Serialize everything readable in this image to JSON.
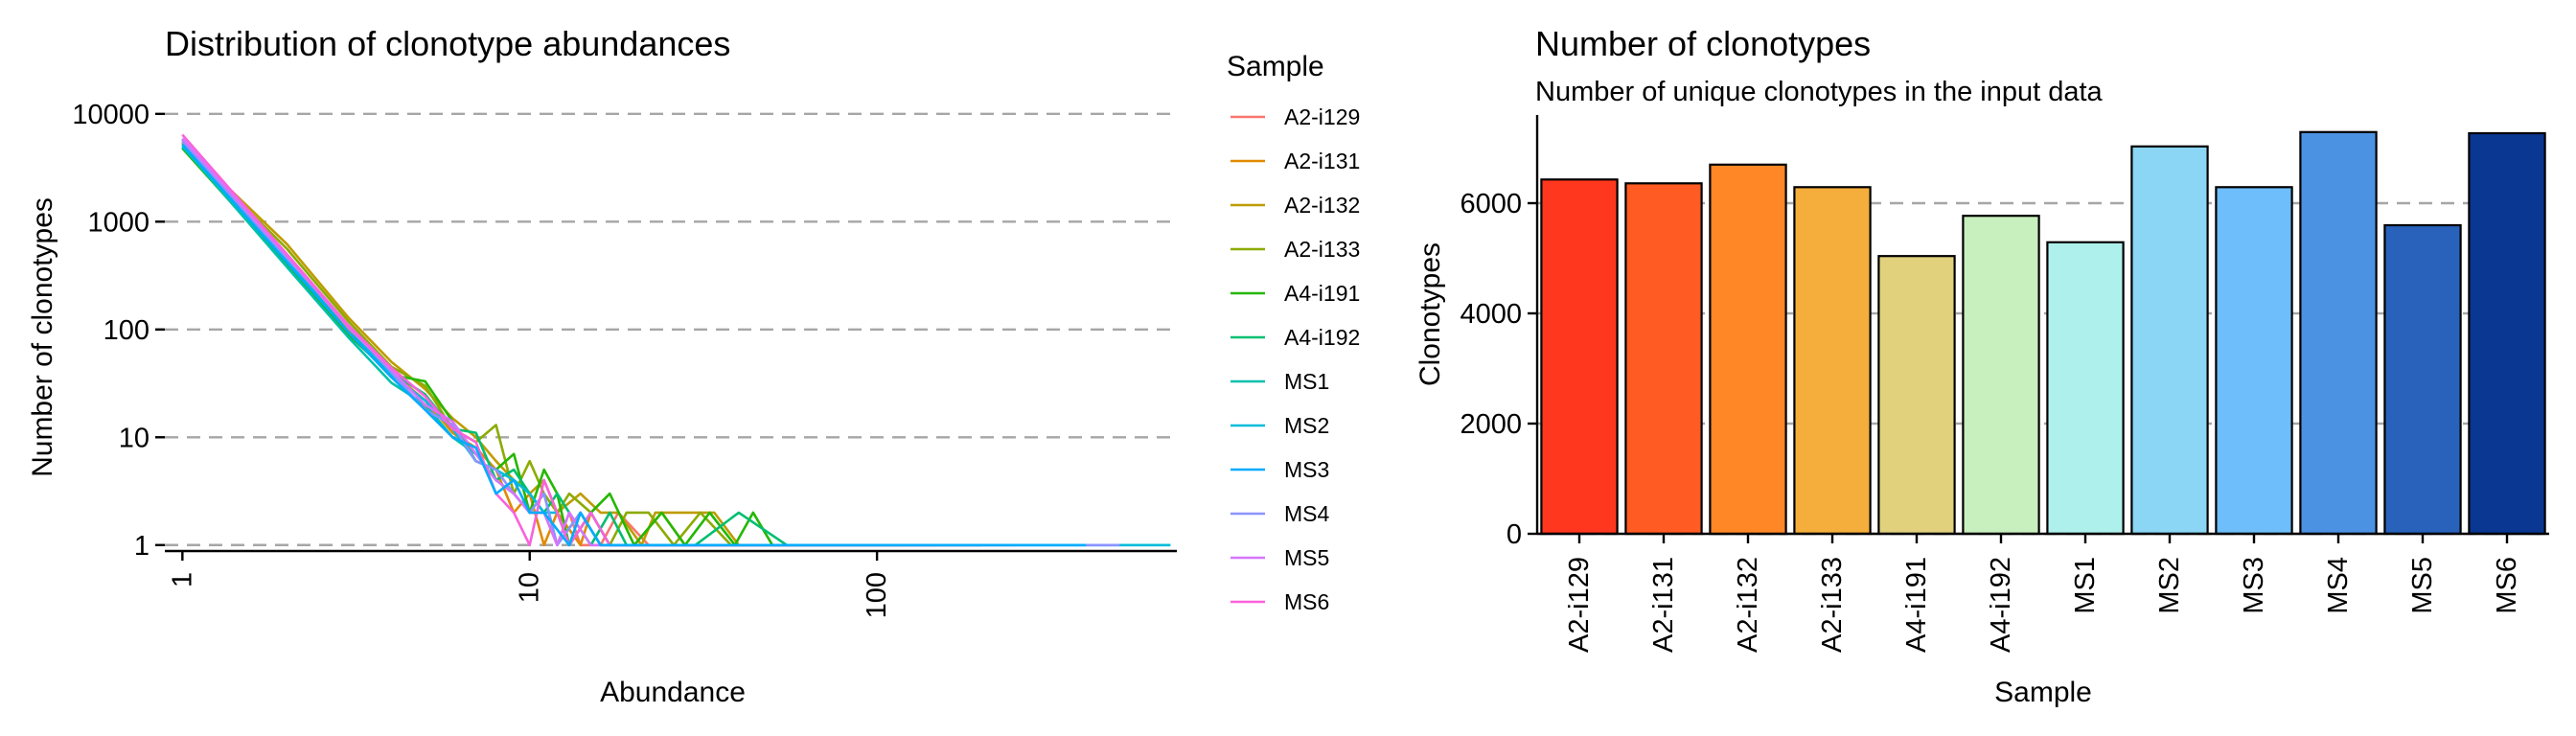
{
  "chart_data": [
    {
      "type": "line",
      "title": "Distribution of clonotype abundances",
      "xlabel": "Abundance",
      "ylabel": "Number of clonotypes",
      "x_scale": "log10",
      "y_scale": "log10",
      "xlim": [
        0.89,
        730
      ],
      "ylim": [
        0.88,
        11500
      ],
      "x_ticks": [
        1,
        10,
        100
      ],
      "x_tick_labels": [
        "1",
        "10",
        "100"
      ],
      "y_ticks": [
        1,
        10,
        100,
        1000,
        10000
      ],
      "y_tick_labels": [
        "1",
        "10",
        "100",
        "1000",
        "10000"
      ],
      "grid": "horizontal dashed",
      "legend_title": "Sample",
      "legend_position": "right",
      "series": [
        {
          "name": "A2-i129",
          "color": "#F8766D",
          "points": [
            [
              1,
              5600
            ],
            [
              2,
              430
            ],
            [
              3,
              95
            ],
            [
              4,
              36
            ],
            [
              5,
              19
            ],
            [
              6,
              13
            ],
            [
              7,
              7
            ],
            [
              8,
              4
            ],
            [
              9,
              3
            ],
            [
              10,
              2
            ],
            [
              11,
              2
            ],
            [
              12,
              1
            ],
            [
              13,
              2
            ],
            [
              14,
              1
            ],
            [
              16,
              1
            ],
            [
              18,
              2
            ],
            [
              22,
              1
            ],
            [
              26,
              1
            ],
            [
              32,
              1
            ],
            [
              45,
              1
            ],
            [
              60,
              1
            ],
            [
              120,
              1
            ],
            [
              250,
              1
            ]
          ]
        },
        {
          "name": "A2-i131",
          "color": "#E18A00",
          "points": [
            [
              1,
              5400
            ],
            [
              2,
              440
            ],
            [
              3,
              100
            ],
            [
              4,
              40
            ],
            [
              5,
              22
            ],
            [
              6,
              11
            ],
            [
              7,
              8
            ],
            [
              8,
              5
            ],
            [
              9,
              2
            ],
            [
              10,
              3
            ],
            [
              11,
              1
            ],
            [
              12,
              2
            ],
            [
              14,
              1
            ],
            [
              15,
              2
            ],
            [
              17,
              1
            ],
            [
              20,
              1
            ],
            [
              24,
              2
            ],
            [
              28,
              1
            ],
            [
              35,
              1
            ],
            [
              50,
              1
            ],
            [
              80,
              1
            ],
            [
              200,
              1
            ]
          ]
        },
        {
          "name": "A2-i132",
          "color": "#BE9C00",
          "points": [
            [
              1,
              5300
            ],
            [
              2,
              620
            ],
            [
              3,
              130
            ],
            [
              4,
              50
            ],
            [
              5,
              28
            ],
            [
              6,
              15
            ],
            [
              7,
              10
            ],
            [
              8,
              6
            ],
            [
              9,
              4
            ],
            [
              10,
              3
            ],
            [
              11,
              4
            ],
            [
              12,
              2
            ],
            [
              14,
              3
            ],
            [
              16,
              2
            ],
            [
              18,
              2
            ],
            [
              21,
              1
            ],
            [
              23,
              2
            ],
            [
              28,
              2
            ],
            [
              34,
              2
            ],
            [
              40,
              1
            ],
            [
              52,
              1
            ],
            [
              70,
              1
            ],
            [
              180,
              1
            ]
          ]
        },
        {
          "name": "A2-i133",
          "color": "#8CAB00",
          "points": [
            [
              1,
              5200
            ],
            [
              2,
              560
            ],
            [
              3,
              120
            ],
            [
              4,
              45
            ],
            [
              5,
              30
            ],
            [
              6,
              12
            ],
            [
              7,
              9
            ],
            [
              8,
              13
            ],
            [
              9,
              3
            ],
            [
              10,
              6
            ],
            [
              11,
              3
            ],
            [
              12,
              2
            ],
            [
              13,
              3
            ],
            [
              15,
              2
            ],
            [
              17,
              1
            ],
            [
              19,
              2
            ],
            [
              22,
              2
            ],
            [
              26,
              1
            ],
            [
              31,
              2
            ],
            [
              38,
              1
            ],
            [
              46,
              1
            ],
            [
              60,
              1
            ],
            [
              150,
              1
            ]
          ]
        },
        {
          "name": "A4-i191",
          "color": "#24B700",
          "points": [
            [
              1,
              4800
            ],
            [
              2,
              400
            ],
            [
              3,
              90
            ],
            [
              4,
              38
            ],
            [
              5,
              33
            ],
            [
              6,
              14
            ],
            [
              7,
              6
            ],
            [
              8,
              5
            ],
            [
              9,
              7
            ],
            [
              10,
              2
            ],
            [
              11,
              5
            ],
            [
              12,
              3
            ],
            [
              13,
              1
            ],
            [
              15,
              2
            ],
            [
              17,
              3
            ],
            [
              20,
              1
            ],
            [
              24,
              2
            ],
            [
              28,
              1
            ],
            [
              33,
              2
            ],
            [
              39,
              1
            ],
            [
              44,
              2
            ],
            [
              50,
              1
            ],
            [
              120,
              1
            ]
          ]
        },
        {
          "name": "A4-i192",
          "color": "#00BE70",
          "points": [
            [
              1,
              4900
            ],
            [
              2,
              450
            ],
            [
              3,
              95
            ],
            [
              4,
              40
            ],
            [
              5,
              25
            ],
            [
              6,
              12
            ],
            [
              7,
              11
            ],
            [
              8,
              4
            ],
            [
              9,
              5
            ],
            [
              10,
              3
            ],
            [
              11,
              2
            ],
            [
              12,
              3
            ],
            [
              13,
              2
            ],
            [
              15,
              1
            ],
            [
              17,
              2
            ],
            [
              19,
              1
            ],
            [
              23,
              1
            ],
            [
              30,
              1
            ],
            [
              40,
              2
            ],
            [
              55,
              1
            ],
            [
              100,
              1
            ]
          ]
        },
        {
          "name": "MS1",
          "color": "#00C1AB",
          "points": [
            [
              1,
              5000
            ],
            [
              2,
              380
            ],
            [
              3,
              85
            ],
            [
              4,
              32
            ],
            [
              5,
              20
            ],
            [
              6,
              10
            ],
            [
              7,
              7
            ],
            [
              8,
              4
            ],
            [
              9,
              3
            ],
            [
              10,
              2
            ],
            [
              11,
              3
            ],
            [
              12,
              1
            ],
            [
              14,
              2
            ],
            [
              16,
              1
            ],
            [
              19,
              1
            ],
            [
              24,
              1
            ],
            [
              30,
              1
            ],
            [
              60,
              1
            ],
            [
              150,
              1
            ]
          ]
        },
        {
          "name": "MS2",
          "color": "#00BBDA",
          "points": [
            [
              1,
              5800
            ],
            [
              2,
              450
            ],
            [
              3,
              105
            ],
            [
              4,
              38
            ],
            [
              5,
              22
            ],
            [
              6,
              12
            ],
            [
              7,
              6
            ],
            [
              8,
              5
            ],
            [
              9,
              4
            ],
            [
              10,
              3
            ],
            [
              11,
              2
            ],
            [
              12,
              2
            ],
            [
              13,
              1
            ],
            [
              15,
              2
            ],
            [
              17,
              1
            ],
            [
              21,
              1
            ],
            [
              26,
              1
            ],
            [
              36,
              1
            ],
            [
              80,
              1
            ],
            [
              300,
              1
            ],
            [
              700,
              1
            ]
          ]
        },
        {
          "name": "MS3",
          "color": "#00ACFC",
          "points": [
            [
              1,
              5200
            ],
            [
              2,
              420
            ],
            [
              3,
              95
            ],
            [
              4,
              36
            ],
            [
              5,
              18
            ],
            [
              6,
              10
            ],
            [
              7,
              8
            ],
            [
              8,
              3
            ],
            [
              9,
              4
            ],
            [
              10,
              2
            ],
            [
              11,
              2
            ],
            [
              13,
              1
            ],
            [
              14,
              2
            ],
            [
              16,
              1
            ],
            [
              20,
              1
            ],
            [
              25,
              1
            ],
            [
              40,
              1
            ],
            [
              100,
              1
            ],
            [
              400,
              1
            ]
          ]
        },
        {
          "name": "MS4",
          "color": "#8B93FF",
          "points": [
            [
              1,
              5500
            ],
            [
              2,
              460
            ],
            [
              3,
              110
            ],
            [
              4,
              40
            ],
            [
              5,
              18
            ],
            [
              6,
              13
            ],
            [
              7,
              6
            ],
            [
              8,
              5
            ],
            [
              9,
              3
            ],
            [
              10,
              2
            ],
            [
              11,
              3
            ],
            [
              12,
              1
            ],
            [
              14,
              2
            ],
            [
              16,
              1
            ],
            [
              20,
              1
            ],
            [
              28,
              1
            ],
            [
              50,
              1
            ],
            [
              120,
              1
            ],
            [
              500,
              1
            ]
          ]
        },
        {
          "name": "MS5",
          "color": "#D575FE",
          "points": [
            [
              1,
              5900
            ],
            [
              2,
              480
            ],
            [
              3,
              105
            ],
            [
              4,
              42
            ],
            [
              5,
              20
            ],
            [
              6,
              14
            ],
            [
              7,
              7
            ],
            [
              8,
              4
            ],
            [
              9,
              3
            ],
            [
              10,
              2
            ],
            [
              11,
              2
            ],
            [
              12,
              1
            ],
            [
              13,
              2
            ],
            [
              15,
              1
            ],
            [
              18,
              1
            ],
            [
              22,
              1
            ],
            [
              35,
              1
            ],
            [
              70,
              1
            ],
            [
              200,
              1
            ]
          ]
        },
        {
          "name": "MS6",
          "color": "#F962DD",
          "points": [
            [
              1,
              6400
            ],
            [
              2,
              500
            ],
            [
              3,
              110
            ],
            [
              4,
              44
            ],
            [
              5,
              24
            ],
            [
              6,
              12
            ],
            [
              7,
              9
            ],
            [
              8,
              3
            ],
            [
              9,
              2
            ],
            [
              10,
              1
            ],
            [
              11,
              4
            ],
            [
              12,
              2
            ],
            [
              13,
              1
            ],
            [
              15,
              2
            ],
            [
              17,
              1
            ],
            [
              21,
              1
            ],
            [
              28,
              1
            ],
            [
              40,
              1
            ],
            [
              55,
              1
            ],
            [
              150,
              1
            ]
          ]
        }
      ],
      "series_draw_order": [
        "A2-i129",
        "A2-i131",
        "A2-i132",
        "A2-i133",
        "A4-i191",
        "A4-i192",
        "MS1",
        "MS2",
        "MS4",
        "MS5",
        "MS6",
        "MS3"
      ]
    },
    {
      "type": "bar",
      "title": "Number of clonotypes",
      "subtitle": "Number of unique clonotypes in the input data",
      "xlabel": "Sample",
      "ylabel": "Clonotypes",
      "ylim": [
        0,
        7600
      ],
      "y_ticks": [
        0,
        2000,
        4000,
        6000
      ],
      "y_tick_labels": [
        "0",
        "2000",
        "4000",
        "6000"
      ],
      "grid": "horizontal dashed",
      "categories": [
        "A2-i129",
        "A2-i131",
        "A2-i132",
        "A2-i133",
        "A4-i191",
        "A4-i192",
        "MS1",
        "MS2",
        "MS3",
        "MS4",
        "MS5",
        "MS6"
      ],
      "values": [
        6430,
        6360,
        6700,
        6290,
        5040,
        5770,
        5290,
        7030,
        6290,
        7290,
        5600,
        7270
      ],
      "colors": [
        "#FF371E",
        "#FF5B22",
        "#FF8725",
        "#F5AE3C",
        "#E1D17D",
        "#C8EFBE",
        "#AEF0EC",
        "#8AD6F4",
        "#6DBEFA",
        "#4C92E2",
        "#2862BB",
        "#093791"
      ]
    }
  ]
}
